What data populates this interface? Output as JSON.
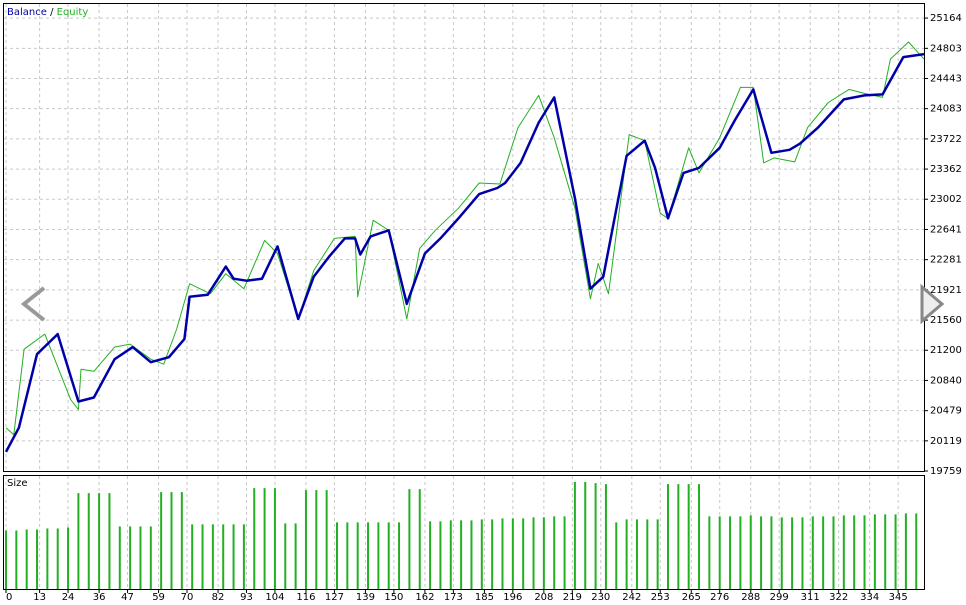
{
  "chart_data": [
    {
      "type": "line",
      "legend": "top-left",
      "legend_separator": "/",
      "grid": true,
      "xlim": [
        0,
        355
      ],
      "ylim": [
        19759,
        25332
      ],
      "yticks": [
        19759,
        20119,
        20479,
        20840,
        21200,
        21560,
        21921,
        22281,
        22641,
        23002,
        23362,
        23722,
        24083,
        24443,
        24803,
        25164
      ],
      "series": [
        {
          "name": "Balance",
          "color": "#0000a8",
          "x": [
            0,
            5,
            12,
            20,
            28,
            34,
            42,
            49,
            56,
            63,
            69,
            71,
            78,
            85,
            88,
            93,
            99,
            105,
            113,
            119,
            125,
            131,
            135,
            137,
            141,
            148,
            155,
            162,
            168,
            175,
            183,
            190,
            193,
            199,
            206,
            212,
            220,
            226,
            231,
            240,
            247,
            251,
            256,
            262,
            268,
            276,
            282,
            289,
            296,
            303,
            307,
            314,
            324,
            332,
            339,
            347,
            355
          ],
          "values": [
            19987,
            20276,
            21153,
            21393,
            20588,
            20636,
            21093,
            21237,
            21057,
            21117,
            21333,
            21838,
            21862,
            22198,
            22054,
            22030,
            22054,
            22439,
            21574,
            22078,
            22319,
            22535,
            22535,
            22343,
            22559,
            22631,
            21754,
            22355,
            22535,
            22775,
            23064,
            23136,
            23196,
            23436,
            23917,
            24217,
            23016,
            21934,
            22078,
            23520,
            23701,
            23376,
            22775,
            23316,
            23376,
            23616,
            23953,
            24313,
            23556,
            23592,
            23665,
            23857,
            24193,
            24241,
            24253,
            24698,
            24734
          ]
        },
        {
          "name": "Equity",
          "color": "#22b022",
          "x": [
            0,
            3,
            7,
            15,
            25,
            28,
            29,
            34,
            42,
            48,
            56,
            61,
            66,
            71,
            79,
            85,
            92,
            100,
            105,
            113,
            119,
            127,
            135,
            136,
            142,
            148,
            155,
            160,
            166,
            175,
            183,
            191,
            198,
            206,
            212,
            220,
            226,
            229,
            233,
            241,
            247,
            253,
            256,
            264,
            268,
            276,
            284,
            289,
            293,
            297,
            305,
            310,
            318,
            326,
            332,
            339,
            342,
            349,
            355
          ],
          "values": [
            20276,
            20192,
            21213,
            21393,
            20612,
            20492,
            20973,
            20949,
            21237,
            21273,
            21093,
            21033,
            21453,
            21994,
            21874,
            22114,
            21934,
            22511,
            22355,
            21574,
            22150,
            22535,
            22559,
            21838,
            22751,
            22631,
            21574,
            22415,
            22631,
            22895,
            23196,
            23184,
            23857,
            24241,
            23737,
            22895,
            21814,
            22235,
            21874,
            23773,
            23701,
            22835,
            22775,
            23616,
            23316,
            23737,
            24337,
            24337,
            23436,
            23496,
            23448,
            23857,
            24157,
            24313,
            24265,
            24217,
            24674,
            24878,
            24674
          ]
        }
      ]
    },
    {
      "type": "bar",
      "title": "Size",
      "color": "#22b022",
      "grid": true,
      "xlim": [
        0,
        355
      ],
      "ylim": [
        0,
        1.12
      ],
      "xticks": [
        0,
        13,
        24,
        36,
        47,
        59,
        70,
        82,
        93,
        104,
        116,
        127,
        139,
        150,
        162,
        173,
        185,
        196,
        208,
        219,
        230,
        242,
        253,
        265,
        276,
        288,
        299,
        311,
        322,
        334,
        345
      ],
      "x": [
        0,
        4,
        8,
        12,
        16,
        20,
        24,
        28,
        32,
        36,
        40,
        44,
        48,
        52,
        56,
        60,
        64,
        68,
        72,
        76,
        80,
        84,
        88,
        92,
        96,
        100,
        104,
        108,
        112,
        116,
        120,
        124,
        128,
        132,
        136,
        140,
        144,
        148,
        152,
        156,
        160,
        164,
        168,
        172,
        176,
        180,
        184,
        188,
        192,
        196,
        200,
        204,
        208,
        212,
        216,
        220,
        224,
        228,
        232,
        236,
        240,
        244,
        248,
        252,
        256,
        260,
        264,
        268,
        272,
        276,
        280,
        284,
        288,
        292,
        296,
        300,
        304,
        308,
        312,
        316,
        320,
        324,
        328,
        332,
        336,
        340,
        344,
        348,
        352
      ],
      "values": [
        0.58,
        0.58,
        0.59,
        0.59,
        0.6,
        0.6,
        0.61,
        0.95,
        0.95,
        0.95,
        0.95,
        0.62,
        0.62,
        0.62,
        0.62,
        0.96,
        0.96,
        0.96,
        0.64,
        0.64,
        0.64,
        0.64,
        0.64,
        0.64,
        1.0,
        1.0,
        1.0,
        0.65,
        0.65,
        0.98,
        0.98,
        0.98,
        0.66,
        0.66,
        0.66,
        0.66,
        0.66,
        0.66,
        0.66,
        0.99,
        0.99,
        0.67,
        0.67,
        0.68,
        0.68,
        0.68,
        0.69,
        0.69,
        0.7,
        0.7,
        0.7,
        0.71,
        0.71,
        0.72,
        0.72,
        1.06,
        1.06,
        1.05,
        1.04,
        0.66,
        0.69,
        0.69,
        0.69,
        0.69,
        1.04,
        1.04,
        1.04,
        1.04,
        0.72,
        0.72,
        0.72,
        0.72,
        0.73,
        0.72,
        0.72,
        0.71,
        0.71,
        0.71,
        0.72,
        0.72,
        0.72,
        0.73,
        0.73,
        0.73,
        0.74,
        0.74,
        0.74,
        0.75,
        0.75
      ]
    }
  ]
}
